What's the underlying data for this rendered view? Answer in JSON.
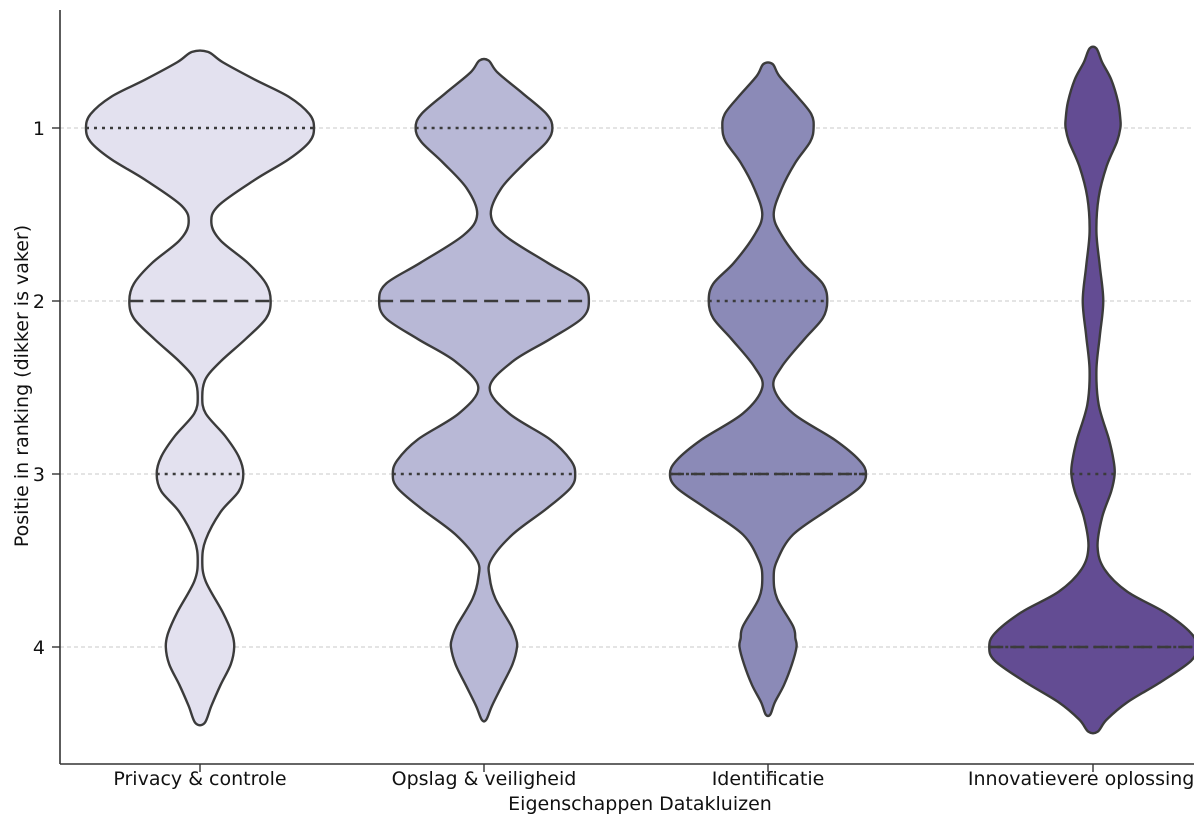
{
  "chart_data": {
    "type": "violin",
    "title": "",
    "xlabel": "Eigenschappen Datakluizen",
    "ylabel": "Positie in ranking (dikker is vaker)",
    "ylim": [
      0.45,
      4.8
    ],
    "y_inverted": true,
    "yticks": [
      "1",
      "2",
      "3",
      "4"
    ],
    "grid": "horizontal dashed",
    "categories": [
      "Privacy & controle",
      "Opslag & veiligheid",
      "Identificatie",
      "Innovatievere oplossingen"
    ],
    "series": [
      {
        "category": "Privacy & controle",
        "color": "#e3e1ef",
        "range": [
          0.56,
          4.44
        ],
        "median": 2,
        "quartiles": [
          1,
          3
        ],
        "density": [
          [
            0.56,
            0.07
          ],
          [
            0.62,
            0.2
          ],
          [
            0.72,
            0.48
          ],
          [
            0.82,
            0.78
          ],
          [
            0.92,
            0.96
          ],
          [
            1.0,
            1.0
          ],
          [
            1.08,
            0.96
          ],
          [
            1.18,
            0.78
          ],
          [
            1.3,
            0.48
          ],
          [
            1.45,
            0.16
          ],
          [
            1.55,
            0.1
          ],
          [
            1.65,
            0.18
          ],
          [
            1.78,
            0.42
          ],
          [
            1.9,
            0.58
          ],
          [
            2.0,
            0.62
          ],
          [
            2.1,
            0.58
          ],
          [
            2.22,
            0.4
          ],
          [
            2.35,
            0.18
          ],
          [
            2.45,
            0.05
          ],
          [
            2.55,
            0.02
          ],
          [
            2.65,
            0.05
          ],
          [
            2.78,
            0.22
          ],
          [
            2.9,
            0.34
          ],
          [
            3.0,
            0.38
          ],
          [
            3.1,
            0.34
          ],
          [
            3.22,
            0.18
          ],
          [
            3.38,
            0.05
          ],
          [
            3.5,
            0.02
          ],
          [
            3.62,
            0.05
          ],
          [
            3.8,
            0.2
          ],
          [
            3.92,
            0.28
          ],
          [
            4.0,
            0.3
          ],
          [
            4.1,
            0.27
          ],
          [
            4.22,
            0.18
          ],
          [
            4.34,
            0.1
          ],
          [
            4.44,
            0.04
          ]
        ]
      },
      {
        "category": "Opslag & veiligheid",
        "color": "#b8b8d6",
        "range": [
          0.61,
          4.42
        ],
        "median": 2,
        "quartiles": [
          1,
          3
        ],
        "density": [
          [
            0.61,
            0.04
          ],
          [
            0.68,
            0.12
          ],
          [
            0.8,
            0.34
          ],
          [
            0.92,
            0.55
          ],
          [
            1.0,
            0.6
          ],
          [
            1.08,
            0.55
          ],
          [
            1.2,
            0.36
          ],
          [
            1.35,
            0.15
          ],
          [
            1.5,
            0.06
          ],
          [
            1.62,
            0.18
          ],
          [
            1.78,
            0.56
          ],
          [
            1.9,
            0.86
          ],
          [
            2.0,
            0.92
          ],
          [
            2.1,
            0.86
          ],
          [
            2.22,
            0.58
          ],
          [
            2.35,
            0.25
          ],
          [
            2.5,
            0.05
          ],
          [
            2.65,
            0.22
          ],
          [
            2.8,
            0.58
          ],
          [
            2.92,
            0.76
          ],
          [
            3.0,
            0.8
          ],
          [
            3.08,
            0.76
          ],
          [
            3.2,
            0.55
          ],
          [
            3.35,
            0.25
          ],
          [
            3.5,
            0.06
          ],
          [
            3.6,
            0.05
          ],
          [
            3.72,
            0.1
          ],
          [
            3.88,
            0.24
          ],
          [
            3.95,
            0.28
          ],
          [
            4.0,
            0.29
          ],
          [
            4.1,
            0.25
          ],
          [
            4.22,
            0.16
          ],
          [
            4.34,
            0.07
          ],
          [
            4.42,
            0.02
          ]
        ]
      },
      {
        "category": "Identificatie",
        "color": "#8b8ab7",
        "range": [
          0.63,
          4.39
        ],
        "median": 3,
        "quartiles": [
          2,
          3
        ],
        "density": [
          [
            0.63,
            0.04
          ],
          [
            0.7,
            0.1
          ],
          [
            0.82,
            0.26
          ],
          [
            0.92,
            0.38
          ],
          [
            1.0,
            0.4
          ],
          [
            1.08,
            0.37
          ],
          [
            1.2,
            0.24
          ],
          [
            1.35,
            0.12
          ],
          [
            1.5,
            0.05
          ],
          [
            1.62,
            0.12
          ],
          [
            1.78,
            0.3
          ],
          [
            1.9,
            0.48
          ],
          [
            2.0,
            0.52
          ],
          [
            2.1,
            0.48
          ],
          [
            2.22,
            0.32
          ],
          [
            2.38,
            0.12
          ],
          [
            2.5,
            0.05
          ],
          [
            2.65,
            0.22
          ],
          [
            2.8,
            0.58
          ],
          [
            2.92,
            0.8
          ],
          [
            3.0,
            0.86
          ],
          [
            3.08,
            0.8
          ],
          [
            3.2,
            0.54
          ],
          [
            3.35,
            0.22
          ],
          [
            3.5,
            0.08
          ],
          [
            3.6,
            0.05
          ],
          [
            3.72,
            0.08
          ],
          [
            3.88,
            0.22
          ],
          [
            3.95,
            0.24
          ],
          [
            4.0,
            0.25
          ],
          [
            4.1,
            0.21
          ],
          [
            4.22,
            0.14
          ],
          [
            4.32,
            0.06
          ],
          [
            4.39,
            0.02
          ]
        ]
      },
      {
        "category": "Innovatievere oplossingen",
        "color": "#634c93",
        "range": [
          0.54,
          4.49
        ],
        "median": 4,
        "quartiles": [
          3,
          4
        ],
        "density": [
          [
            0.54,
            0.03
          ],
          [
            0.62,
            0.08
          ],
          [
            0.72,
            0.16
          ],
          [
            0.85,
            0.22
          ],
          [
            0.95,
            0.24
          ],
          [
            1.0,
            0.24
          ],
          [
            1.08,
            0.21
          ],
          [
            1.22,
            0.12
          ],
          [
            1.4,
            0.05
          ],
          [
            1.6,
            0.03
          ],
          [
            1.8,
            0.06
          ],
          [
            2.0,
            0.09
          ],
          [
            2.2,
            0.06
          ],
          [
            2.4,
            0.03
          ],
          [
            2.6,
            0.05
          ],
          [
            2.8,
            0.14
          ],
          [
            2.92,
            0.18
          ],
          [
            3.0,
            0.19
          ],
          [
            3.1,
            0.16
          ],
          [
            3.25,
            0.08
          ],
          [
            3.42,
            0.04
          ],
          [
            3.55,
            0.1
          ],
          [
            3.68,
            0.3
          ],
          [
            3.8,
            0.63
          ],
          [
            3.92,
            0.86
          ],
          [
            4.0,
            0.91
          ],
          [
            4.08,
            0.86
          ],
          [
            4.2,
            0.6
          ],
          [
            4.32,
            0.3
          ],
          [
            4.42,
            0.12
          ],
          [
            4.49,
            0.04
          ]
        ]
      }
    ]
  }
}
